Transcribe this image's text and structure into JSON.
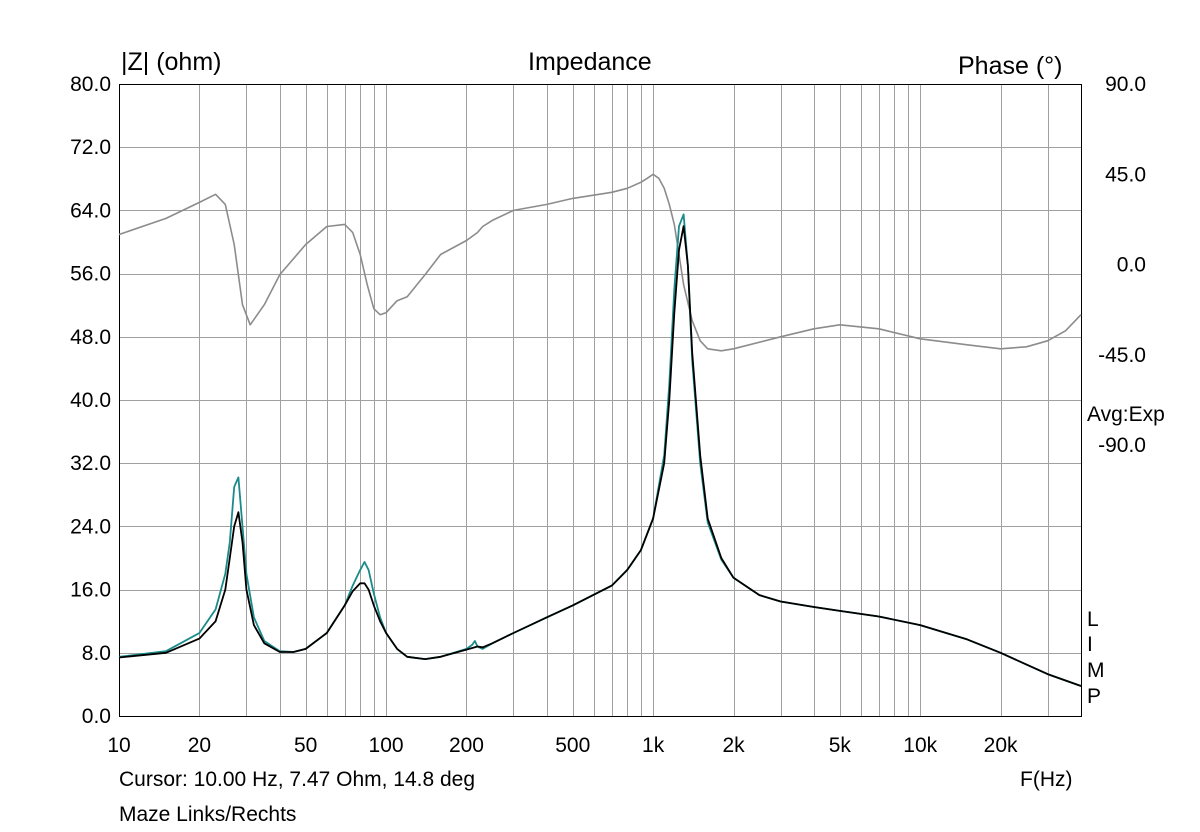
{
  "chart_data": {
    "type": "line",
    "title": "Impedance",
    "ylabel": "|Z| (ohm)",
    "y2label": "Phase (°)",
    "xlabel": "F(Hz)",
    "x_scale": "log",
    "xlim": [
      10,
      40000
    ],
    "ylim": [
      0,
      80
    ],
    "y2lim": [
      -225,
      90
    ],
    "grid": true,
    "x_ticks": [
      {
        "value": 10,
        "label": "10"
      },
      {
        "value": 20,
        "label": "20"
      },
      {
        "value": 50,
        "label": "50"
      },
      {
        "value": 100,
        "label": "100"
      },
      {
        "value": 200,
        "label": "200"
      },
      {
        "value": 500,
        "label": "500"
      },
      {
        "value": 1000,
        "label": "1k"
      },
      {
        "value": 2000,
        "label": "2k"
      },
      {
        "value": 5000,
        "label": "5k"
      },
      {
        "value": 10000,
        "label": "10k"
      },
      {
        "value": 20000,
        "label": "20k"
      }
    ],
    "y_ticks": [
      {
        "value": 0,
        "label": "0.0"
      },
      {
        "value": 8,
        "label": "8.0"
      },
      {
        "value": 16,
        "label": "16.0"
      },
      {
        "value": 24,
        "label": "24.0"
      },
      {
        "value": 32,
        "label": "32.0"
      },
      {
        "value": 40,
        "label": "40.0"
      },
      {
        "value": 48,
        "label": "48.0"
      },
      {
        "value": 56,
        "label": "56.0"
      },
      {
        "value": 64,
        "label": "64.0"
      },
      {
        "value": 72,
        "label": "72.0"
      },
      {
        "value": 80,
        "label": "80.0"
      }
    ],
    "y2_ticks": [
      {
        "value": 90,
        "label": "90.0"
      },
      {
        "value": 45,
        "label": "45.0"
      },
      {
        "value": 0,
        "label": "0.0"
      },
      {
        "value": -45,
        "label": "-45.0"
      },
      {
        "value": -90,
        "label": "-90.0"
      }
    ],
    "series": [
      {
        "axis": "phase",
        "color": "#8c8c8c",
        "x": [
          10,
          15,
          20,
          23,
          25,
          27,
          29,
          31,
          35,
          40,
          50,
          60,
          70,
          75,
          80,
          85,
          90,
          95,
          100,
          110,
          120,
          140,
          160,
          200,
          220,
          230,
          250,
          300,
          400,
          500,
          700,
          800,
          900,
          950,
          1000,
          1050,
          1100,
          1150,
          1200,
          1250,
          1300,
          1400,
          1500,
          1600,
          1800,
          2000,
          3000,
          4000,
          5000,
          7000,
          10000,
          15000,
          20000,
          25000,
          30000,
          35000,
          40000
        ],
        "values": [
          15,
          23,
          31,
          35,
          30,
          10,
          -20,
          -30,
          -20,
          -5,
          10,
          19,
          20,
          16,
          5,
          -10,
          -22,
          -25,
          -24,
          -18,
          -16,
          -5,
          5,
          12,
          16,
          19,
          22,
          27,
          30,
          33,
          36,
          38,
          41,
          43,
          45,
          43,
          38,
          30,
          20,
          5,
          -10,
          -28,
          -38,
          -42,
          -43,
          -42,
          -36,
          -32,
          -30,
          -32,
          -37,
          -40,
          -42,
          -41,
          -38,
          -33,
          -25
        ]
      },
      {
        "axis": "impedance",
        "color": "#1a8a8a",
        "x": [
          10,
          15,
          20,
          23,
          25,
          26,
          27,
          28,
          29,
          30,
          32,
          35,
          40,
          45,
          50,
          60,
          70,
          75,
          80,
          83,
          86,
          90,
          95,
          100,
          110,
          120,
          140,
          160,
          200,
          210,
          215,
          220,
          230,
          250,
          300,
          400,
          500,
          700,
          800,
          900,
          1000,
          1100,
          1150,
          1200,
          1250,
          1300,
          1350,
          1400,
          1500,
          1600,
          1800,
          2000,
          2500,
          3000,
          4000,
          5000,
          7000,
          10000,
          15000,
          20000,
          25000,
          30000,
          35000,
          40000
        ],
        "values": [
          7.5,
          8.2,
          10.5,
          13.5,
          18,
          22,
          29,
          30.2,
          24,
          18,
          12.5,
          9.5,
          8.2,
          8.1,
          8.5,
          10.5,
          14,
          16.5,
          18.5,
          19.5,
          18.5,
          15.5,
          12.5,
          10.5,
          8.5,
          7.5,
          7.2,
          7.5,
          8.5,
          9.0,
          9.5,
          8.8,
          8.5,
          9.2,
          10.5,
          12.5,
          14,
          16.5,
          18.5,
          21,
          25,
          33,
          42,
          54,
          62,
          63.5,
          57,
          45,
          32,
          24.5,
          19.8,
          17.5,
          15.3,
          14.5,
          13.8,
          13.3,
          12.6,
          11.5,
          9.7,
          8.0,
          6.5,
          5.3,
          4.5,
          3.8
        ]
      },
      {
        "axis": "impedance",
        "color": "#000000",
        "x": [
          10,
          15,
          20,
          23,
          25,
          26,
          27,
          28,
          29,
          30,
          32,
          35,
          40,
          45,
          50,
          60,
          70,
          75,
          80,
          83,
          86,
          90,
          95,
          100,
          110,
          120,
          140,
          160,
          200,
          220,
          230,
          250,
          300,
          400,
          500,
          700,
          800,
          900,
          1000,
          1100,
          1150,
          1200,
          1250,
          1300,
          1350,
          1400,
          1500,
          1600,
          1800,
          2000,
          2500,
          3000,
          4000,
          5000,
          7000,
          10000,
          15000,
          20000,
          25000,
          30000,
          35000,
          40000
        ],
        "values": [
          7.4,
          8.0,
          9.8,
          12,
          16,
          20,
          24,
          25.8,
          22,
          16,
          11.5,
          9.2,
          8.1,
          8.1,
          8.5,
          10.5,
          14,
          15.8,
          16.8,
          16.8,
          16.0,
          14.0,
          12.0,
          10.5,
          8.5,
          7.5,
          7.2,
          7.5,
          8.4,
          8.8,
          8.7,
          9.2,
          10.5,
          12.5,
          14,
          16.5,
          18.5,
          21,
          25,
          32,
          40,
          51,
          59,
          62,
          57,
          46,
          33,
          25,
          20,
          17.5,
          15.3,
          14.5,
          13.8,
          13.3,
          12.6,
          11.5,
          9.7,
          8.0,
          6.5,
          5.3,
          4.5,
          3.8
        ]
      }
    ],
    "side_letters": [
      "L",
      "I",
      "M",
      "P"
    ],
    "avg_label": "Avg:Exp"
  },
  "footer": {
    "cursor": "Cursor: 10.00 Hz, 7.47 Ohm, 14.8 deg",
    "name": "Maze Links/Rechts"
  }
}
